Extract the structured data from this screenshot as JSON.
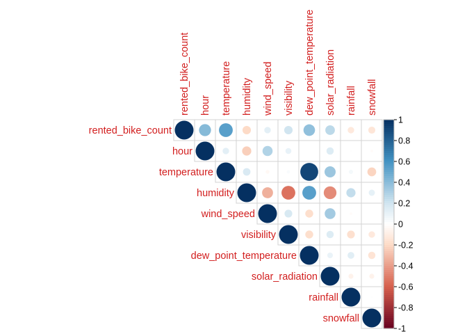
{
  "chart_data": {
    "type": "heatmap",
    "style": "circle",
    "layout": "upper-triangle",
    "variables": [
      "rented_bike_count",
      "hour",
      "temperature",
      "humidity",
      "wind_speed",
      "visibility",
      "dew_point_temperature",
      "solar_radiation",
      "rainfall",
      "snowfall"
    ],
    "matrix": [
      [
        1.0,
        0.41,
        0.54,
        -0.2,
        0.12,
        0.2,
        0.38,
        0.26,
        -0.12,
        -0.14
      ],
      [
        null,
        1.0,
        0.12,
        -0.24,
        0.29,
        0.1,
        0.0,
        0.15,
        0.01,
        -0.02
      ],
      [
        null,
        null,
        1.0,
        0.16,
        -0.04,
        0.03,
        0.91,
        0.35,
        0.05,
        -0.22
      ],
      [
        null,
        null,
        null,
        1.0,
        -0.34,
        -0.54,
        0.54,
        -0.46,
        0.24,
        0.11
      ],
      [
        null,
        null,
        null,
        null,
        1.0,
        0.17,
        -0.18,
        0.33,
        -0.02,
        0.0
      ],
      [
        null,
        null,
        null,
        null,
        null,
        1.0,
        -0.18,
        0.15,
        -0.17,
        -0.12
      ],
      [
        null,
        null,
        null,
        null,
        null,
        null,
        1.0,
        0.09,
        0.13,
        -0.15
      ],
      [
        null,
        null,
        null,
        null,
        null,
        null,
        null,
        1.0,
        -0.07,
        -0.07
      ],
      [
        null,
        null,
        null,
        null,
        null,
        null,
        null,
        null,
        1.0,
        0.01
      ],
      [
        null,
        null,
        null,
        null,
        null,
        null,
        null,
        null,
        null,
        1.0
      ]
    ],
    "colorbar": {
      "ticks": [
        "1",
        "0.8",
        "0.6",
        "0.4",
        "0.2",
        "0",
        "-0.2",
        "-0.4",
        "-0.6",
        "-0.8",
        "-1"
      ],
      "range": [
        -1,
        1
      ],
      "colors": {
        "neg_strong": "#67001f",
        "neg_mid": "#d6604d",
        "neg_light": "#fddbc7",
        "zero": "#ffffff",
        "pos_light": "#d1e5f0",
        "pos_mid": "#4393c3",
        "pos_strong": "#053061"
      }
    }
  }
}
